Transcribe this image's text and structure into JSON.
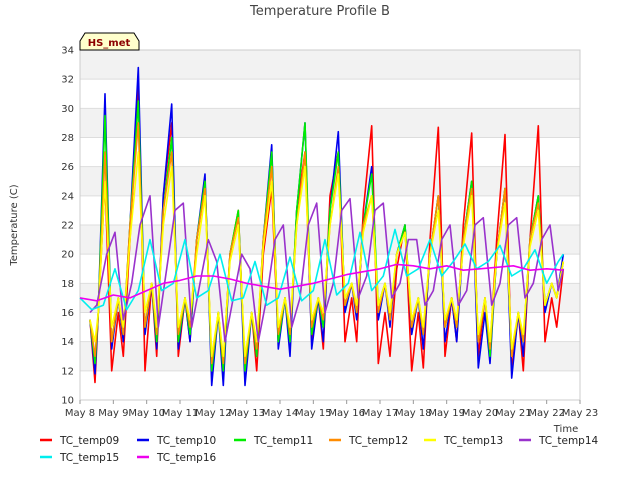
{
  "chart_data": {
    "type": "line",
    "title": "Temperature Profile B",
    "xlabel": "Time",
    "ylabel": "Temperature (C)",
    "ylim": [
      10,
      34
    ],
    "xlim": [
      0,
      15
    ],
    "yticks": [
      10,
      12,
      14,
      16,
      18,
      20,
      22,
      24,
      26,
      28,
      30,
      32,
      34
    ],
    "xtick_labels": [
      "May 8",
      "May 9",
      "May 10",
      "May 11",
      "May 12",
      "May 13",
      "May 14",
      "May 15",
      "May 16",
      "May 17",
      "May 18",
      "May 19",
      "May 20",
      "May 21",
      "May 22",
      "May 23"
    ],
    "x_unit": "days since May 8",
    "grid": true,
    "legend_position": "bottom",
    "annotation": "HS_met",
    "series": [
      {
        "name": "TC_temp09",
        "color": "#ff0000",
        "x": [
          0.3,
          0.45,
          0.55,
          0.75,
          0.95,
          1.15,
          1.3,
          1.5,
          1.75,
          1.95,
          2.15,
          2.3,
          2.5,
          2.75,
          2.95,
          3.15,
          3.3,
          3.5,
          3.75,
          3.95,
          4.15,
          4.3,
          4.5,
          4.75,
          4.95,
          5.15,
          5.3,
          5.5,
          5.75,
          5.95,
          6.15,
          6.3,
          6.5,
          6.75,
          6.95,
          7.15,
          7.3,
          7.5,
          7.75,
          7.95,
          8.15,
          8.3,
          8.5,
          8.75,
          8.95,
          9.15,
          9.3,
          9.5,
          9.75,
          9.95,
          10.15,
          10.3,
          10.5,
          10.75,
          10.95,
          11.15,
          11.3,
          11.5,
          11.75,
          11.95,
          12.15,
          12.3,
          12.5,
          12.75,
          12.95,
          13.15,
          13.3,
          13.5,
          13.75,
          13.95,
          14.15,
          14.3,
          14.5
        ],
        "y": [
          15.5,
          11.2,
          16,
          25,
          12,
          16,
          13,
          21,
          31.5,
          12,
          18,
          13,
          24,
          29,
          13,
          17,
          14,
          21,
          25,
          12,
          16,
          12.5,
          20,
          23,
          12,
          16,
          12,
          20,
          24.5,
          14,
          17,
          14,
          23,
          27,
          14,
          17,
          13.5,
          24,
          27,
          14,
          17,
          14,
          23,
          28.8,
          12.5,
          16,
          13,
          19,
          22,
          12,
          16,
          12.2,
          21,
          28.7,
          13,
          17,
          14,
          22,
          28.3,
          13,
          17,
          13.5,
          21,
          28.2,
          12,
          16,
          12,
          21,
          28.8,
          14,
          17,
          15,
          19
        ]
      },
      {
        "name": "TC_temp10",
        "color": "#0000ee",
        "x": [
          0.3,
          0.45,
          0.55,
          0.75,
          0.95,
          1.15,
          1.3,
          1.5,
          1.75,
          1.95,
          2.15,
          2.3,
          2.5,
          2.75,
          2.95,
          3.15,
          3.3,
          3.5,
          3.75,
          3.95,
          4.15,
          4.3,
          4.5,
          4.75,
          4.95,
          5.15,
          5.3,
          5.5,
          5.75,
          5.95,
          6.15,
          6.3,
          6.5,
          6.75,
          6.95,
          7.15,
          7.3,
          7.5,
          7.75,
          7.95,
          8.15,
          8.3,
          8.5,
          8.75,
          8.95,
          9.15,
          9.3,
          9.5,
          9.75,
          9.95,
          10.15,
          10.3,
          10.5,
          10.75,
          10.95,
          11.15,
          11.3,
          11.5,
          11.75,
          11.95,
          12.15,
          12.3,
          12.5,
          12.75,
          12.95,
          13.15,
          13.3,
          13.5,
          13.75,
          13.95,
          14.15,
          14.3,
          14.5
        ],
        "y": [
          15.5,
          11.8,
          16,
          31,
          13.5,
          17,
          14,
          22,
          32.8,
          14.5,
          18,
          13.5,
          24,
          30.3,
          13.5,
          17,
          14,
          21,
          25.5,
          11,
          16,
          11,
          20,
          22.7,
          11,
          16,
          13,
          21,
          27.5,
          13.5,
          17,
          13,
          23,
          29,
          13.5,
          17,
          14,
          23,
          28.4,
          16,
          18,
          15.5,
          22,
          26,
          15.5,
          18,
          15,
          20,
          22,
          14.5,
          17,
          13.5,
          20,
          24,
          14,
          17,
          14,
          21,
          25,
          12.2,
          16,
          12.5,
          20,
          24.5,
          11.5,
          16,
          13,
          21,
          24,
          16,
          18,
          17,
          20
        ]
      },
      {
        "name": "TC_temp11",
        "color": "#00ee00",
        "x": [
          0.3,
          0.45,
          0.55,
          0.75,
          0.95,
          1.15,
          1.3,
          1.5,
          1.75,
          1.95,
          2.15,
          2.3,
          2.5,
          2.75,
          2.95,
          3.15,
          3.3,
          3.5,
          3.75,
          3.95,
          4.15,
          4.3,
          4.5,
          4.75,
          4.95,
          5.15,
          5.3,
          5.5,
          5.75,
          5.95,
          6.15,
          6.3,
          6.5,
          6.75,
          6.95,
          7.15,
          7.3,
          7.5,
          7.75,
          7.95,
          8.15,
          8.3,
          8.5,
          8.75,
          8.95,
          9.15,
          9.3,
          9.5,
          9.75,
          9.95,
          10.15,
          10.3,
          10.5,
          10.75,
          10.95,
          11.15,
          11.3,
          11.5,
          11.75,
          11.95,
          12.15,
          12.3,
          12.5,
          12.75,
          12.95,
          13.15,
          13.3,
          13.5,
          13.75,
          13.95,
          14.15,
          14.3,
          14.5
        ],
        "y": [
          15.5,
          12.5,
          16,
          29.5,
          14,
          17,
          14.5,
          22,
          30.5,
          15,
          18,
          14,
          23,
          28,
          14,
          17,
          14.5,
          21,
          25,
          12,
          16,
          12,
          20,
          23,
          12,
          16,
          13,
          21,
          27,
          14,
          17,
          14,
          23,
          29,
          14.5,
          17,
          15,
          23,
          27,
          16.5,
          18,
          16,
          22,
          25.5,
          16.5,
          18,
          15.5,
          20,
          22,
          15,
          17,
          14.5,
          20,
          24,
          15,
          17,
          15,
          21,
          25,
          14,
          17,
          13,
          20,
          24.5,
          13,
          16,
          14,
          21,
          24,
          16.5,
          18,
          17,
          19.5
        ]
      },
      {
        "name": "TC_temp12",
        "color": "#ff8c00",
        "x": [
          0.3,
          0.45,
          0.55,
          0.75,
          0.95,
          1.15,
          1.3,
          1.5,
          1.75,
          1.95,
          2.15,
          2.3,
          2.5,
          2.75,
          2.95,
          3.15,
          3.3,
          3.5,
          3.75,
          3.95,
          4.15,
          4.3,
          4.5,
          4.75,
          4.95,
          5.15,
          5.3,
          5.5,
          5.75,
          5.95,
          6.15,
          6.3,
          6.5,
          6.75,
          6.95,
          7.15,
          7.3,
          7.5,
          7.75,
          7.95,
          8.15,
          8.3,
          8.5,
          8.75,
          8.95,
          9.15,
          9.3,
          9.5,
          9.75,
          9.95,
          10.15,
          10.3,
          10.5,
          10.75,
          10.95,
          11.15,
          11.3,
          11.5,
          11.75,
          11.95,
          12.15,
          12.3,
          12.5,
          12.75,
          12.95,
          13.15,
          13.3,
          13.5,
          13.75,
          13.95,
          14.15,
          14.3,
          14.5
        ],
        "y": [
          15.5,
          13,
          16,
          27,
          14,
          17,
          14.5,
          22,
          29,
          15,
          18,
          14.5,
          23,
          27,
          14.5,
          17,
          15,
          21,
          24.5,
          12.5,
          16,
          12.5,
          20,
          22.5,
          12.5,
          16,
          13.5,
          21,
          26,
          14.5,
          17,
          14.5,
          22,
          27,
          15,
          17,
          15.5,
          22,
          26,
          16.5,
          18,
          16,
          22,
          24,
          16,
          18,
          15.5,
          20,
          21.5,
          15,
          17,
          14.5,
          20,
          24,
          15,
          17,
          15,
          21,
          24.5,
          14,
          17,
          13.5,
          20,
          24.5,
          13,
          16,
          14,
          21,
          23.5,
          16.5,
          18,
          17,
          19.5
        ]
      },
      {
        "name": "TC_temp13",
        "color": "#ffff00",
        "x": [
          0.3,
          0.45,
          0.55,
          0.75,
          0.95,
          1.15,
          1.3,
          1.5,
          1.75,
          1.95,
          2.15,
          2.3,
          2.5,
          2.75,
          2.95,
          3.15,
          3.3,
          3.5,
          3.75,
          3.95,
          4.15,
          4.3,
          4.5,
          4.75,
          4.95,
          5.15,
          5.3,
          5.5,
          5.75,
          5.95,
          6.15,
          6.3,
          6.5,
          6.75,
          6.95,
          7.15,
          7.3,
          7.5,
          7.75,
          7.95,
          8.15,
          8.3,
          8.5,
          8.75,
          8.95,
          9.15,
          9.3,
          9.5,
          9.75,
          9.95,
          10.15,
          10.3,
          10.5,
          10.75,
          10.95,
          11.15,
          11.3,
          11.5,
          11.75,
          11.95,
          12.15,
          12.3,
          12.5,
          12.75,
          12.95,
          13.15,
          13.3,
          13.5,
          13.75,
          13.95,
          14.15,
          14.3,
          14.5
        ],
        "y": [
          15.5,
          14,
          16,
          25,
          15,
          17,
          15,
          21,
          27,
          16,
          18,
          15,
          22,
          26,
          15,
          17,
          15.5,
          20,
          24,
          13,
          16,
          13,
          19.5,
          22,
          13,
          16,
          14,
          20.5,
          25,
          15,
          17,
          15,
          22,
          26,
          15.5,
          17,
          16,
          22,
          25.5,
          17,
          18,
          16.5,
          21.5,
          24,
          16.5,
          18,
          16,
          20,
          21.5,
          15.5,
          17,
          15,
          20,
          23,
          15.5,
          17,
          15.5,
          20.5,
          24,
          14.5,
          17,
          14,
          20,
          23.5,
          13.5,
          16,
          14.5,
          20.5,
          23,
          16.5,
          18,
          17,
          19.5
        ]
      },
      {
        "name": "TC_temp14",
        "color": "#9932cc",
        "x": [
          0.3,
          0.5,
          0.8,
          1.05,
          1.3,
          1.55,
          1.8,
          2.1,
          2.35,
          2.6,
          2.85,
          3.1,
          3.35,
          3.6,
          3.85,
          4.1,
          4.35,
          4.6,
          4.85,
          5.1,
          5.35,
          5.6,
          5.85,
          6.1,
          6.35,
          6.6,
          6.85,
          7.1,
          7.35,
          7.6,
          7.85,
          8.1,
          8.35,
          8.6,
          8.85,
          9.1,
          9.35,
          9.6,
          9.85,
          10.1,
          10.35,
          10.6,
          10.85,
          11.1,
          11.35,
          11.6,
          11.85,
          12.1,
          12.35,
          12.6,
          12.85,
          13.1,
          13.35,
          13.6,
          13.85,
          14.1,
          14.35,
          14.5
        ],
        "y": [
          16,
          16.5,
          20,
          21.5,
          15.5,
          18,
          22,
          24,
          15,
          19,
          23,
          23.5,
          15,
          18,
          21,
          19.5,
          14,
          17,
          20,
          19,
          14,
          17,
          21,
          22,
          15,
          17,
          22,
          23.5,
          16,
          18,
          23,
          23.8,
          17,
          18.5,
          23,
          23.5,
          17,
          18,
          21,
          21,
          16.5,
          17.5,
          21,
          22,
          16.5,
          17.5,
          22,
          22.5,
          16.5,
          18,
          22,
          22.5,
          17,
          18,
          21,
          22,
          17.5,
          19
        ]
      },
      {
        "name": "TC_temp15",
        "color": "#00eeee",
        "x": [
          0,
          0.35,
          0.7,
          1.05,
          1.4,
          1.75,
          2.1,
          2.45,
          2.8,
          3.15,
          3.5,
          3.85,
          4.2,
          4.55,
          4.9,
          5.25,
          5.6,
          5.95,
          6.3,
          6.65,
          7.0,
          7.35,
          7.7,
          8.05,
          8.4,
          8.75,
          9.1,
          9.45,
          9.8,
          10.15,
          10.5,
          10.85,
          11.2,
          11.55,
          11.9,
          12.25,
          12.6,
          12.95,
          13.3,
          13.65,
          14.0,
          14.35,
          14.5
        ],
        "y": [
          17,
          16.2,
          16.5,
          19,
          16.2,
          17.5,
          21,
          17.5,
          18,
          21,
          17,
          17.5,
          20,
          16.8,
          17,
          19.5,
          16.5,
          17,
          19.8,
          16.8,
          17.5,
          21,
          17.2,
          18,
          21.5,
          17.5,
          18.5,
          21.7,
          18.5,
          19,
          21,
          18.5,
          19.5,
          20.7,
          19,
          19.5,
          20.6,
          18.5,
          19,
          20.3,
          18,
          19.5,
          20
        ]
      },
      {
        "name": "TC_temp16",
        "color": "#ee00ee",
        "x": [
          0,
          0.5,
          1.0,
          1.5,
          2.0,
          2.5,
          3.0,
          3.5,
          4.0,
          4.5,
          5.0,
          5.5,
          6.0,
          6.5,
          7.0,
          7.5,
          8.0,
          8.5,
          9.0,
          9.5,
          10.0,
          10.5,
          11.0,
          11.5,
          12.0,
          12.5,
          13.0,
          13.5,
          14.0,
          14.5
        ],
        "y": [
          17.0,
          16.8,
          17.2,
          17.0,
          17.5,
          18.0,
          18.2,
          18.5,
          18.5,
          18.3,
          18.0,
          17.8,
          17.6,
          17.8,
          18.0,
          18.3,
          18.6,
          18.8,
          19.0,
          19.3,
          19.2,
          19.0,
          19.2,
          18.9,
          19.0,
          19.1,
          19.2,
          18.9,
          19.0,
          18.9
        ]
      }
    ]
  }
}
